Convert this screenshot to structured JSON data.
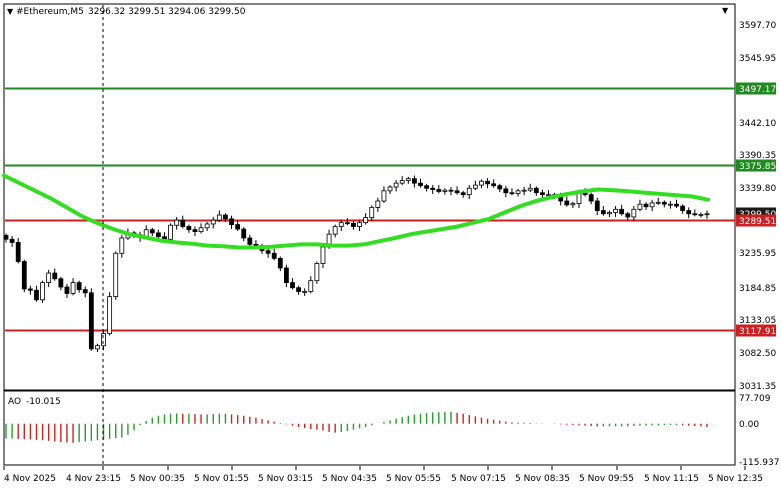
{
  "header": {
    "symbol": "#Ethereum,M5",
    "ohlc": "3296.32 3299.51 3294.06 3299.50"
  },
  "indicator": {
    "name": "AO",
    "value": "-10.015",
    "ticks": [
      "77.709",
      "0.00",
      "-115.937"
    ]
  },
  "price_axis": {
    "ticks": [
      "3597.70",
      "3545.95",
      "3442.10",
      "3390.35",
      "3339.80",
      "3235.95",
      "3184.85",
      "3133.05",
      "3082.50",
      "3031.35"
    ]
  },
  "levels": [
    {
      "name": "level-3497",
      "label": "3497.17",
      "price": 3497.17,
      "color": "#1f8a1f"
    },
    {
      "name": "level-3375",
      "label": "3375.85",
      "price": 3375.85,
      "color": "#1f8a1f"
    },
    {
      "name": "level-3289",
      "label": "3289.51",
      "price": 3289.51,
      "color": "#cc1f1f"
    },
    {
      "name": "level-3117",
      "label": "3117.91",
      "price": 3117.91,
      "color": "#cc1f1f"
    }
  ],
  "current_price_tag": "3299.50",
  "time_axis": {
    "labels": [
      "4 Nov 2025",
      "4 Nov 23:15",
      "5 Nov 00:35",
      "5 Nov 01:55",
      "5 Nov 03:15",
      "5 Nov 04:35",
      "5 Nov 05:55",
      "5 Nov 07:15",
      "5 Nov 08:35",
      "5 Nov 09:55",
      "5 Nov 11:15",
      "5 Nov 12:35"
    ]
  },
  "colors": {
    "candle": "#000000",
    "moving_average": "#33dd22",
    "ao_up": "#2a9a2a",
    "ao_down": "#d02020",
    "crosshair": "#000000"
  },
  "chart_data": {
    "type": "candlestick",
    "ylim": [
      3031.35,
      3597.7
    ],
    "close_series": [
      3260,
      3255,
      3225,
      3182,
      3180,
      3165,
      3192,
      3207,
      3198,
      3185,
      3175,
      3192,
      3181,
      3176,
      3088,
      3093,
      3112,
      3170,
      3238,
      3262,
      3270,
      3267,
      3263,
      3275,
      3270,
      3264,
      3260,
      3282,
      3290,
      3280,
      3275,
      3272,
      3278,
      3284,
      3290,
      3298,
      3292,
      3283,
      3276,
      3262,
      3252,
      3250,
      3242,
      3238,
      3230,
      3215,
      3192,
      3184,
      3178,
      3178,
      3195,
      3222,
      3248,
      3268,
      3280,
      3286,
      3285,
      3280,
      3286,
      3294,
      3310,
      3320,
      3336,
      3342,
      3348,
      3352,
      3355,
      3348,
      3344,
      3340,
      3338,
      3335,
      3337,
      3336,
      3333,
      3330,
      3340,
      3345,
      3351,
      3347,
      3344,
      3339,
      3333,
      3332,
      3336,
      3337,
      3340,
      3333,
      3330,
      3330,
      3328,
      3320,
      3314,
      3316,
      3333,
      3330,
      3320,
      3305,
      3300,
      3302,
      3307,
      3300,
      3295,
      3307,
      3315,
      3311,
      3317,
      3318,
      3315,
      3315,
      3312,
      3305,
      3300,
      3299,
      3299,
      3300
    ],
    "ma_series": [
      3360,
      3348,
      3336,
      3324,
      3310,
      3296,
      3285,
      3276,
      3268,
      3263,
      3258,
      3255,
      3253,
      3250,
      3249,
      3247,
      3247,
      3248,
      3250,
      3252,
      3252,
      3250,
      3250,
      3252,
      3257,
      3262,
      3268,
      3272,
      3276,
      3280,
      3286,
      3292,
      3302,
      3312,
      3320,
      3326,
      3331,
      3335,
      3338,
      3337,
      3335,
      3333,
      3331,
      3329,
      3327,
      3322
    ],
    "ao_series": [
      -45,
      -45,
      -46,
      -47,
      -48,
      -49,
      -50,
      -52,
      -54,
      -56,
      -57,
      -58,
      -56,
      -54,
      -52,
      -50,
      -48,
      -46,
      -44,
      -42,
      -34,
      -20,
      -5,
      8,
      18,
      24,
      28,
      30,
      31,
      30,
      30,
      29,
      28,
      28,
      29,
      30,
      30,
      28,
      26,
      24,
      21,
      18,
      14,
      10,
      6,
      2,
      -2,
      -6,
      -10,
      -13,
      -16,
      -18,
      -21,
      -25,
      -27,
      -25,
      -22,
      -18,
      -14,
      -10,
      -5,
      0,
      5,
      10,
      15,
      20,
      24,
      28,
      30,
      32,
      34,
      35,
      36,
      36,
      33,
      30,
      26,
      22,
      18,
      15,
      12,
      9,
      6,
      4,
      3,
      3,
      2,
      1,
      1,
      0,
      -1,
      -2,
      -3,
      -4,
      -5,
      -6,
      -7,
      -8,
      -8,
      -8,
      -8,
      -8,
      -8,
      -7,
      -6,
      -6,
      -5,
      -5,
      -4,
      -4,
      -4,
      -5,
      -6,
      -7,
      -8,
      -10
    ],
    "ao_ylim": [
      -115.937,
      77.709
    ]
  }
}
